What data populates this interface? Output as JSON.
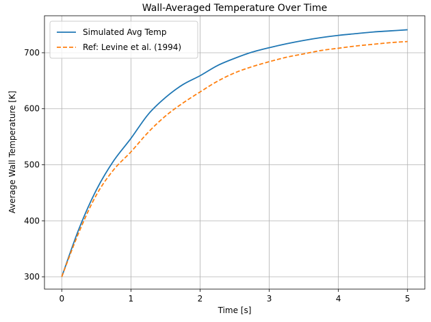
{
  "chart_data": {
    "type": "line",
    "title": "Wall-Averaged Temperature Over Time",
    "xlabel": "Time [s]",
    "ylabel": "Average Wall Temperature [K]",
    "xlim": [
      -0.25,
      5.25
    ],
    "ylim": [
      278,
      766
    ],
    "xticks": [
      0,
      1,
      2,
      3,
      4,
      5
    ],
    "yticks": [
      300,
      400,
      500,
      600,
      700
    ],
    "grid": true,
    "legend_position": "top-left",
    "x": [
      0,
      0.25,
      0.5,
      0.75,
      1,
      1.25,
      1.5,
      1.75,
      2,
      2.25,
      2.5,
      2.75,
      3,
      3.25,
      3.5,
      3.75,
      4,
      4.25,
      4.5,
      4.75,
      5
    ],
    "series": [
      {
        "name": "Simulated Avg Temp",
        "color": "#1f77b4",
        "style": "solid",
        "values": [
          300,
          386,
          455,
          507,
          547,
          590,
          620,
          643,
          659,
          677,
          690,
          701,
          709,
          716,
          722,
          727,
          731,
          734,
          737,
          739,
          741
        ]
      },
      {
        "name": "Ref: Levine et al. (1994)",
        "color": "#ff7f0e",
        "style": "dashed",
        "values": [
          300,
          380,
          446,
          491,
          523,
          558,
          587,
          610,
          630,
          649,
          664,
          675,
          684,
          692,
          698,
          704,
          708,
          712,
          715,
          718,
          720
        ]
      }
    ]
  }
}
